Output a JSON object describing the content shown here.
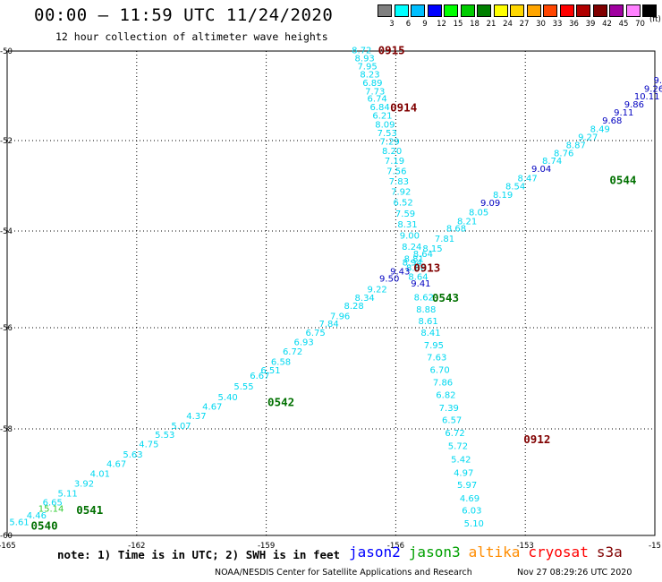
{
  "header": {
    "title": "00:00 – 11:59 UTC 11/24/2020",
    "subtitle": "12 hour collection of altimeter wave heights"
  },
  "legend": {
    "unit": "(ft)",
    "swatches": [
      {
        "color": "#808080",
        "label": "3"
      },
      {
        "color": "#00ffff",
        "label": "6"
      },
      {
        "color": "#00bfff",
        "label": "9"
      },
      {
        "color": "#0000ff",
        "label": "12"
      },
      {
        "color": "#00ff00",
        "label": "15"
      },
      {
        "color": "#00cc00",
        "label": "18"
      },
      {
        "color": "#008000",
        "label": "21"
      },
      {
        "color": "#ffff00",
        "label": "24"
      },
      {
        "color": "#ffd700",
        "label": "27"
      },
      {
        "color": "#ffa500",
        "label": "30"
      },
      {
        "color": "#ff4500",
        "label": "33"
      },
      {
        "color": "#ff0000",
        "label": "36"
      },
      {
        "color": "#b00000",
        "label": "39"
      },
      {
        "color": "#800000",
        "label": "42"
      },
      {
        "color": "#a000a0",
        "label": "45"
      },
      {
        "color": "#ff80ff",
        "label": "70"
      },
      {
        "color": "#000000",
        "label": ""
      }
    ]
  },
  "map": {
    "x_ticks": [
      {
        "lon": -165,
        "label": "-165"
      },
      {
        "lon": -162,
        "label": "-162"
      },
      {
        "lon": -159,
        "label": "-159"
      },
      {
        "lon": -156,
        "label": "-156"
      },
      {
        "lon": -153,
        "label": "-153"
      },
      {
        "lon": -150,
        "label": "-15"
      }
    ],
    "y_ticks": [
      {
        "lat": -50,
        "label": "-50"
      },
      {
        "lat": -52,
        "label": "-52"
      },
      {
        "lat": -54,
        "label": "-54"
      },
      {
        "lat": -56,
        "label": "-56"
      },
      {
        "lat": -58,
        "label": "-58"
      },
      {
        "lat": -60,
        "label": "-60"
      }
    ],
    "colors": {
      "cyan": "#00d8f0",
      "blue": "#0000c0",
      "green": "#00a800",
      "darkgreen": "#007000",
      "maroon": "#800000",
      "lightgreen": "#33cc33"
    },
    "track_down": [
      {
        "lon": -157.02,
        "lat": -49.99,
        "v": "8.72",
        "c": "cyan"
      },
      {
        "lon": -156.95,
        "lat": -50.17,
        "v": "8.93",
        "c": "cyan"
      },
      {
        "lon": -156.89,
        "lat": -50.35,
        "v": "7.95",
        "c": "cyan"
      },
      {
        "lon": -156.83,
        "lat": -50.53,
        "v": "8.23",
        "c": "cyan"
      },
      {
        "lon": -156.77,
        "lat": -50.72,
        "v": "6.89",
        "c": "cyan"
      },
      {
        "lon": -156.71,
        "lat": -50.91,
        "v": "7.73",
        "c": "cyan"
      },
      {
        "lon": -156.66,
        "lat": -51.07,
        "v": "6.74",
        "c": "cyan"
      },
      {
        "lon": -156.6,
        "lat": -51.26,
        "v": "6.84",
        "c": "cyan"
      },
      {
        "lon": -156.54,
        "lat": -51.45,
        "v": "6.21",
        "c": "cyan"
      },
      {
        "lon": -156.48,
        "lat": -51.65,
        "v": "8.09",
        "c": "cyan"
      },
      {
        "lon": -156.43,
        "lat": -51.84,
        "v": "7.53",
        "c": "cyan"
      },
      {
        "lon": -156.37,
        "lat": -52.03,
        "v": "7.29",
        "c": "cyan"
      },
      {
        "lon": -156.32,
        "lat": -52.24,
        "v": "8.20",
        "c": "cyan"
      },
      {
        "lon": -156.26,
        "lat": -52.46,
        "v": "7.19",
        "c": "cyan"
      },
      {
        "lon": -156.21,
        "lat": -52.68,
        "v": "7.56",
        "c": "cyan"
      },
      {
        "lon": -156.16,
        "lat": -52.91,
        "v": "7.83",
        "c": "cyan"
      },
      {
        "lon": -156.11,
        "lat": -53.14,
        "v": "7.92",
        "c": "cyan"
      },
      {
        "lon": -156.06,
        "lat": -53.38,
        "v": "6.52",
        "c": "cyan"
      },
      {
        "lon": -156.01,
        "lat": -53.62,
        "v": "7.59",
        "c": "cyan"
      },
      {
        "lon": -155.96,
        "lat": -53.86,
        "v": "8.31",
        "c": "cyan"
      },
      {
        "lon": -155.91,
        "lat": -54.1,
        "v": "9.00",
        "c": "cyan"
      },
      {
        "lon": -155.86,
        "lat": -54.33,
        "v": "8.24",
        "c": "cyan"
      },
      {
        "lon": -155.81,
        "lat": -54.58,
        "v": "8.81",
        "c": "cyan"
      },
      {
        "lon": -155.76,
        "lat": -54.77,
        "v": "8.66",
        "c": "cyan"
      },
      {
        "lon": -155.71,
        "lat": -54.95,
        "v": "8.64",
        "c": "cyan"
      },
      {
        "lon": -155.65,
        "lat": -55.09,
        "v": "9.41",
        "c": "blue"
      },
      {
        "lon": -155.58,
        "lat": -55.38,
        "v": "8.62",
        "c": "cyan"
      },
      {
        "lon": -155.53,
        "lat": -55.63,
        "v": "8.88",
        "c": "cyan"
      },
      {
        "lon": -155.48,
        "lat": -55.87,
        "v": "8.61",
        "c": "cyan"
      },
      {
        "lon": -155.42,
        "lat": -56.11,
        "v": "8.41",
        "c": "cyan"
      },
      {
        "lon": -155.35,
        "lat": -56.35,
        "v": "7.95",
        "c": "cyan"
      },
      {
        "lon": -155.28,
        "lat": -56.59,
        "v": "7.63",
        "c": "cyan"
      },
      {
        "lon": -155.21,
        "lat": -56.84,
        "v": "6.70",
        "c": "cyan"
      },
      {
        "lon": -155.14,
        "lat": -57.09,
        "v": "7.86",
        "c": "cyan"
      },
      {
        "lon": -155.07,
        "lat": -57.34,
        "v": "6.82",
        "c": "cyan"
      },
      {
        "lon": -155.0,
        "lat": -57.59,
        "v": "7.39",
        "c": "cyan"
      },
      {
        "lon": -154.93,
        "lat": -57.83,
        "v": "6.57",
        "c": "cyan"
      },
      {
        "lon": -154.86,
        "lat": -58.08,
        "v": "6.72",
        "c": "cyan"
      },
      {
        "lon": -154.79,
        "lat": -58.33,
        "v": "5.72",
        "c": "cyan"
      },
      {
        "lon": -154.72,
        "lat": -58.58,
        "v": "5.42",
        "c": "cyan"
      },
      {
        "lon": -154.66,
        "lat": -58.83,
        "v": "4.97",
        "c": "cyan"
      },
      {
        "lon": -154.58,
        "lat": -59.06,
        "v": "5.97",
        "c": "cyan"
      },
      {
        "lon": -154.52,
        "lat": -59.31,
        "v": "4.69",
        "c": "cyan"
      },
      {
        "lon": -154.47,
        "lat": -59.54,
        "v": "6.03",
        "c": "cyan"
      },
      {
        "lon": -154.42,
        "lat": -59.78,
        "v": "5.10",
        "c": "cyan"
      }
    ],
    "track_up": [
      {
        "lon": -164.95,
        "lat": -59.76,
        "v": "5.61",
        "c": "cyan"
      },
      {
        "lon": -164.55,
        "lat": -59.63,
        "v": "4.46",
        "c": "cyan"
      },
      {
        "lon": -164.18,
        "lat": -59.39,
        "v": "6.65",
        "c": "cyan"
      },
      {
        "lon": -163.83,
        "lat": -59.22,
        "v": "5.11",
        "c": "cyan"
      },
      {
        "lon": -163.45,
        "lat": -59.03,
        "v": "3.92",
        "c": "cyan"
      },
      {
        "lon": -163.08,
        "lat": -58.85,
        "v": "4.01",
        "c": "cyan"
      },
      {
        "lon": -162.7,
        "lat": -58.66,
        "v": "4.67",
        "c": "cyan"
      },
      {
        "lon": -162.32,
        "lat": -58.49,
        "v": "5.63",
        "c": "cyan"
      },
      {
        "lon": -161.95,
        "lat": -58.29,
        "v": "4.75",
        "c": "cyan"
      },
      {
        "lon": -161.58,
        "lat": -58.12,
        "v": "5.53",
        "c": "cyan"
      },
      {
        "lon": -161.2,
        "lat": -57.95,
        "v": "5.07",
        "c": "cyan"
      },
      {
        "lon": -160.85,
        "lat": -57.75,
        "v": "4.37",
        "c": "cyan"
      },
      {
        "lon": -160.48,
        "lat": -57.57,
        "v": "4.67",
        "c": "cyan"
      },
      {
        "lon": -160.12,
        "lat": -57.38,
        "v": "5.40",
        "c": "cyan"
      },
      {
        "lon": -159.75,
        "lat": -57.17,
        "v": "5.55",
        "c": "cyan"
      },
      {
        "lon": -159.38,
        "lat": -56.96,
        "v": "6.67",
        "c": "cyan"
      },
      {
        "lon": -159.13,
        "lat": -56.85,
        "v": "6.51",
        "c": "cyan"
      },
      {
        "lon": -158.89,
        "lat": -56.68,
        "v": "6.58",
        "c": "cyan"
      },
      {
        "lon": -158.62,
        "lat": -56.48,
        "v": "6.72",
        "c": "cyan"
      },
      {
        "lon": -158.36,
        "lat": -56.29,
        "v": "6.93",
        "c": "cyan"
      },
      {
        "lon": -158.09,
        "lat": -56.11,
        "v": "6.75",
        "c": "cyan"
      },
      {
        "lon": -157.78,
        "lat": -55.93,
        "v": "7.84",
        "c": "cyan"
      },
      {
        "lon": -157.52,
        "lat": -55.77,
        "v": "7.96",
        "c": "cyan"
      },
      {
        "lon": -157.2,
        "lat": -55.56,
        "v": "8.28",
        "c": "cyan"
      },
      {
        "lon": -156.95,
        "lat": -55.39,
        "v": "8.34",
        "c": "cyan"
      },
      {
        "lon": -156.66,
        "lat": -55.21,
        "v": "9.22",
        "c": "cyan"
      },
      {
        "lon": -156.38,
        "lat": -54.99,
        "v": "9.50",
        "c": "blue"
      },
      {
        "lon": -156.13,
        "lat": -54.84,
        "v": "9.43",
        "c": "blue"
      },
      {
        "lon": -155.85,
        "lat": -54.66,
        "v": "8.94",
        "c": "cyan"
      },
      {
        "lon": -155.6,
        "lat": -54.48,
        "v": "8.64",
        "c": "cyan"
      },
      {
        "lon": -155.38,
        "lat": -54.37,
        "v": "8.15",
        "c": "cyan"
      },
      {
        "lon": -155.1,
        "lat": -54.17,
        "v": "7.81",
        "c": "cyan"
      },
      {
        "lon": -154.83,
        "lat": -53.95,
        "v": "8.68",
        "c": "cyan"
      },
      {
        "lon": -154.58,
        "lat": -53.79,
        "v": "8.21",
        "c": "cyan"
      },
      {
        "lon": -154.31,
        "lat": -53.59,
        "v": "8.05",
        "c": "cyan"
      },
      {
        "lon": -154.04,
        "lat": -53.39,
        "v": "9.09",
        "c": "blue"
      },
      {
        "lon": -153.75,
        "lat": -53.21,
        "v": "8.19",
        "c": "cyan"
      },
      {
        "lon": -153.46,
        "lat": -53.02,
        "v": "8.54",
        "c": "cyan"
      },
      {
        "lon": -153.18,
        "lat": -52.84,
        "v": "8.47",
        "c": "cyan"
      },
      {
        "lon": -152.86,
        "lat": -52.63,
        "v": "9.04",
        "c": "blue"
      },
      {
        "lon": -152.61,
        "lat": -52.46,
        "v": "8.74",
        "c": "cyan"
      },
      {
        "lon": -152.34,
        "lat": -52.29,
        "v": "8.76",
        "c": "cyan"
      },
      {
        "lon": -152.06,
        "lat": -52.11,
        "v": "8.87",
        "c": "cyan"
      },
      {
        "lon": -151.78,
        "lat": -51.93,
        "v": "9.27",
        "c": "cyan"
      },
      {
        "lon": -151.5,
        "lat": -51.75,
        "v": "8.49",
        "c": "cyan"
      },
      {
        "lon": -151.22,
        "lat": -51.56,
        "v": "9.68",
        "c": "blue"
      },
      {
        "lon": -150.95,
        "lat": -51.38,
        "v": "9.11",
        "c": "blue"
      },
      {
        "lon": -150.71,
        "lat": -51.2,
        "v": "9.86",
        "c": "blue"
      },
      {
        "lon": -150.48,
        "lat": -51.02,
        "v": "10.11",
        "c": "blue"
      },
      {
        "lon": -150.25,
        "lat": -50.85,
        "v": "9.26",
        "c": "blue"
      },
      {
        "lon": -150.03,
        "lat": -50.66,
        "v": "9.39",
        "c": "blue"
      },
      {
        "lon": -149.81,
        "lat": -50.48,
        "v": "9.47",
        "c": "blue"
      },
      {
        "lon": -149.65,
        "lat": -50.3,
        "v": "9.4",
        "c": "blue"
      },
      {
        "lon": -149.55,
        "lat": -50.14,
        "v": "9.",
        "c": "blue"
      },
      {
        "lon": -164.28,
        "lat": -59.5,
        "v": "15.14",
        "c": "lightgreen"
      }
    ],
    "pass_labels": [
      {
        "lon": -156.41,
        "lat": -49.99,
        "text": "0915",
        "c": "maroon"
      },
      {
        "lon": -156.13,
        "lat": -51.27,
        "text": "0914",
        "c": "maroon"
      },
      {
        "lon": -155.59,
        "lat": -54.77,
        "text": "0913",
        "c": "maroon"
      },
      {
        "lon": -153.04,
        "lat": -58.2,
        "text": "0912",
        "c": "maroon"
      },
      {
        "lon": -151.05,
        "lat": -52.88,
        "text": "0544",
        "c": "darkgreen"
      },
      {
        "lon": -155.16,
        "lat": -55.39,
        "text": "0543",
        "c": "darkgreen"
      },
      {
        "lon": -158.97,
        "lat": -57.48,
        "text": "0542",
        "c": "darkgreen"
      },
      {
        "lon": -163.4,
        "lat": -59.53,
        "text": "0541",
        "c": "darkgreen"
      },
      {
        "lon": -164.45,
        "lat": -59.82,
        "text": "0540",
        "c": "darkgreen"
      }
    ]
  },
  "note": "note: 1) Time is in UTC; 2) SWH is in feet",
  "satellites": [
    {
      "name": "jason2",
      "color": "#0000ff"
    },
    {
      "name": "jason3",
      "color": "#00a000"
    },
    {
      "name": "altika",
      "color": "#ff8c00"
    },
    {
      "name": "cryosat",
      "color": "#ff0000"
    },
    {
      "name": "s3a",
      "color": "#800000"
    }
  ],
  "footer": {
    "credit": "NOAA/NESDIS Center for Satellite Applications and Research",
    "timestamp": "Nov 27 08:29:26 UTC 2020"
  }
}
